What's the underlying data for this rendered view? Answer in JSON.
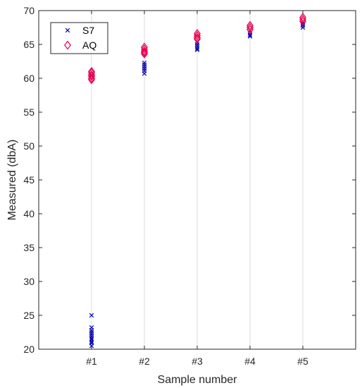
{
  "chart_data": {
    "type": "scatter",
    "title": "",
    "xlabel": "Sample number",
    "ylabel": "Measured (dbA)",
    "categories": [
      "#1",
      "#2",
      "#3",
      "#4",
      "#5"
    ],
    "xlim": [
      0,
      6
    ],
    "ylim": [
      20,
      70
    ],
    "yticks": [
      20,
      25,
      30,
      35,
      40,
      45,
      50,
      55,
      60,
      65,
      70
    ],
    "grid": "vertical",
    "legend_position": "top-left",
    "series": [
      {
        "name": "S7",
        "marker": "x",
        "color": "#0000aa",
        "points": [
          {
            "x": 1,
            "y": 25.0
          },
          {
            "x": 1,
            "y": 23.2
          },
          {
            "x": 1,
            "y": 22.8
          },
          {
            "x": 1,
            "y": 22.5
          },
          {
            "x": 1,
            "y": 22.2
          },
          {
            "x": 1,
            "y": 21.9
          },
          {
            "x": 1,
            "y": 21.6
          },
          {
            "x": 1,
            "y": 21.4
          },
          {
            "x": 1,
            "y": 21.1
          },
          {
            "x": 1,
            "y": 20.9
          },
          {
            "x": 1,
            "y": 20.5
          },
          {
            "x": 2,
            "y": 62.3
          },
          {
            "x": 2,
            "y": 62.0
          },
          {
            "x": 2,
            "y": 61.7
          },
          {
            "x": 2,
            "y": 61.4
          },
          {
            "x": 2,
            "y": 61.1
          },
          {
            "x": 2,
            "y": 60.7
          },
          {
            "x": 3,
            "y": 65.3
          },
          {
            "x": 3,
            "y": 65.0
          },
          {
            "x": 3,
            "y": 64.7
          },
          {
            "x": 3,
            "y": 64.4
          },
          {
            "x": 3,
            "y": 64.2
          },
          {
            "x": 4,
            "y": 67.0
          },
          {
            "x": 4,
            "y": 66.7
          },
          {
            "x": 4,
            "y": 66.4
          },
          {
            "x": 4,
            "y": 66.2
          },
          {
            "x": 5,
            "y": 68.2
          },
          {
            "x": 5,
            "y": 68.0
          },
          {
            "x": 5,
            "y": 67.8
          },
          {
            "x": 5,
            "y": 67.5
          }
        ]
      },
      {
        "name": "AQ",
        "marker": "diamond",
        "color": "#e8004f",
        "points": [
          {
            "x": 1,
            "y": 61.0
          },
          {
            "x": 1,
            "y": 60.8
          },
          {
            "x": 1,
            "y": 60.5
          },
          {
            "x": 1,
            "y": 60.3
          },
          {
            "x": 1,
            "y": 60.0
          },
          {
            "x": 1,
            "y": 59.8
          },
          {
            "x": 2,
            "y": 64.6
          },
          {
            "x": 2,
            "y": 64.3
          },
          {
            "x": 2,
            "y": 64.0
          },
          {
            "x": 2,
            "y": 63.8
          },
          {
            "x": 2,
            "y": 63.6
          },
          {
            "x": 3,
            "y": 66.6
          },
          {
            "x": 3,
            "y": 66.3
          },
          {
            "x": 3,
            "y": 66.0
          },
          {
            "x": 3,
            "y": 65.8
          },
          {
            "x": 4,
            "y": 67.8
          },
          {
            "x": 4,
            "y": 67.5
          },
          {
            "x": 4,
            "y": 67.2
          },
          {
            "x": 5,
            "y": 69.0
          },
          {
            "x": 5,
            "y": 68.7
          },
          {
            "x": 5,
            "y": 68.4
          }
        ]
      }
    ]
  }
}
